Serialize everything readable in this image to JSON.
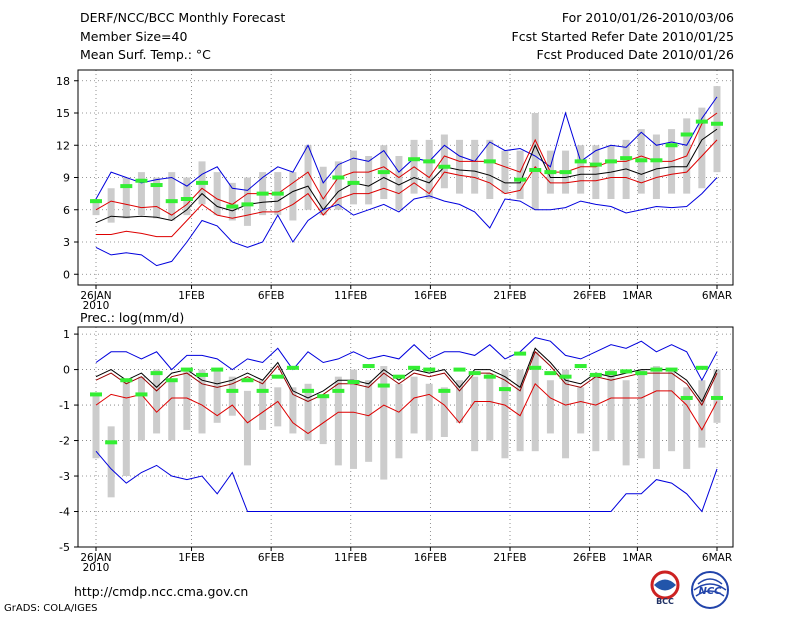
{
  "header": {
    "title": "DERF/NCC/BCC Monthly Forecast",
    "member_size": "Member Size=40",
    "variable": "Mean Surf. Temp.: °C",
    "period": "For 2010/01/26-2010/03/06",
    "started": "Fcst Started Refer Date 2010/01/25",
    "produced": "Fcst Produced Date 2010/01/26"
  },
  "footer": {
    "url": "http://cmdp.ncc.cma.gov.cn",
    "credit": "GrADS: COLA/IGES",
    "logo_bcc": "BCC",
    "logo_ncc": "NCC"
  },
  "chart_data": [
    {
      "type": "line",
      "title": "Mean Surf. Temp.: °C",
      "xlabel": "",
      "ylabel": "",
      "ylim": [
        -1,
        19
      ],
      "yticks": [
        0,
        3,
        6,
        9,
        12,
        15,
        18
      ],
      "xticks": [
        {
          "day": 0,
          "label": "26JAN",
          "sub": "2010"
        },
        {
          "day": 6,
          "label": "1FEB"
        },
        {
          "day": 11,
          "label": "6FEB"
        },
        {
          "day": 16,
          "label": "11FEB"
        },
        {
          "day": 21,
          "label": "16FEB"
        },
        {
          "day": 26,
          "label": "21FEB"
        },
        {
          "day": 31,
          "label": "26FEB"
        },
        {
          "day": 34,
          "label": "1MAR"
        },
        {
          "day": 39,
          "label": "6MAR"
        }
      ],
      "series": [
        {
          "name": "max",
          "color": "#0000dd",
          "values": [
            7.0,
            9.5,
            9.0,
            8.5,
            8.8,
            9.0,
            8.2,
            9.3,
            10.0,
            8.0,
            7.8,
            9.0,
            10.0,
            9.5,
            12.0,
            8.5,
            10.2,
            10.8,
            10.5,
            11.5,
            9.5,
            10.8,
            10.5,
            12.0,
            11.0,
            10.5,
            12.3,
            11.5,
            11.7,
            11.0,
            10.0,
            15.0,
            10.5,
            11.5,
            12.0,
            11.8,
            13.2,
            12.0,
            12.3,
            12.0,
            14.5,
            16.5
          ]
        },
        {
          "name": "upper",
          "color": "#dd0000",
          "values": [
            6.0,
            6.8,
            6.5,
            6.2,
            6.3,
            5.5,
            6.5,
            8.0,
            7.0,
            6.5,
            7.5,
            7.5,
            7.5,
            8.5,
            9.5,
            7.0,
            9.0,
            9.5,
            9.5,
            10.0,
            9.0,
            10.0,
            9.0,
            11.0,
            10.5,
            10.5,
            10.5,
            10.0,
            9.5,
            12.5,
            9.5,
            9.5,
            10.0,
            10.0,
            10.5,
            10.5,
            11.0,
            10.5,
            10.5,
            11.0,
            14.0,
            15.0
          ]
        },
        {
          "name": "mean",
          "color": "#000000",
          "values": [
            4.8,
            5.4,
            5.3,
            5.4,
            5.3,
            5.0,
            6.0,
            7.5,
            6.3,
            5.9,
            6.5,
            6.7,
            6.8,
            7.7,
            8.2,
            6.0,
            7.7,
            8.5,
            8.2,
            9.0,
            8.3,
            9.0,
            8.5,
            10.0,
            9.7,
            9.6,
            9.2,
            8.5,
            8.5,
            12.0,
            9.0,
            9.0,
            9.3,
            9.3,
            9.5,
            9.8,
            9.3,
            9.8,
            10.0,
            10.0,
            12.5,
            13.5
          ]
        },
        {
          "name": "lower",
          "color": "#dd0000",
          "values": [
            3.7,
            3.7,
            4.0,
            3.8,
            3.5,
            3.5,
            5.0,
            6.5,
            5.5,
            5.2,
            5.5,
            5.8,
            5.8,
            6.5,
            7.5,
            5.5,
            7.0,
            7.5,
            7.5,
            8.0,
            7.5,
            8.5,
            7.5,
            9.5,
            9.2,
            9.0,
            8.5,
            7.5,
            7.8,
            10.0,
            8.5,
            8.5,
            8.7,
            8.7,
            9.0,
            9.0,
            8.5,
            9.0,
            9.3,
            9.5,
            11.0,
            12.5
          ]
        },
        {
          "name": "min",
          "color": "#0000dd",
          "values": [
            2.5,
            1.8,
            2.0,
            1.8,
            0.8,
            1.2,
            3.0,
            5.0,
            4.5,
            3.0,
            2.5,
            3.0,
            5.5,
            3.0,
            5.0,
            6.0,
            6.5,
            5.5,
            6.0,
            6.5,
            5.8,
            7.0,
            7.3,
            6.8,
            6.5,
            5.8,
            4.3,
            7.0,
            6.8,
            6.0,
            6.0,
            6.2,
            6.8,
            6.5,
            6.3,
            5.7,
            6.0,
            6.3,
            6.2,
            6.3,
            7.5,
            9.0
          ]
        }
      ],
      "box_series": {
        "name": "ensemble range",
        "color": "#cccccc",
        "low": [
          5.5,
          4.8,
          5.2,
          5.5,
          5.2,
          5.0,
          5.5,
          6.5,
          5.5,
          5.0,
          4.5,
          5.5,
          5.5,
          5.0,
          6.0,
          5.5,
          6.0,
          6.5,
          6.5,
          7.0,
          6.0,
          7.5,
          7.0,
          8.0,
          7.5,
          7.5,
          7.0,
          7.5,
          7.0,
          6.0,
          7.5,
          7.5,
          7.5,
          7.0,
          7.0,
          7.0,
          7.5,
          7.0,
          7.5,
          7.5,
          8.0,
          9.5
        ],
        "high": [
          7.0,
          8.0,
          9.0,
          9.5,
          9.0,
          9.5,
          9.0,
          10.5,
          9.5,
          8.5,
          9.0,
          9.5,
          9.5,
          9.5,
          12.0,
          10.0,
          10.5,
          11.5,
          11.0,
          12.0,
          11.0,
          12.5,
          12.5,
          13.0,
          12.5,
          12.5,
          12.5,
          11.5,
          11.5,
          15.0,
          11.5,
          11.5,
          12.0,
          12.0,
          12.0,
          12.5,
          13.5,
          13.0,
          13.5,
          14.5,
          15.5,
          17.5
        ]
      },
      "markers": {
        "name": "observed",
        "color": "#33ee33",
        "values": [
          6.8,
          null,
          8.2,
          8.7,
          8.3,
          6.8,
          7.0,
          8.5,
          null,
          6.3,
          6.5,
          7.5,
          7.5,
          null,
          null,
          null,
          9.0,
          8.5,
          null,
          9.5,
          null,
          10.7,
          10.5,
          10.0,
          null,
          null,
          10.5,
          null,
          8.8,
          9.7,
          9.5,
          9.5,
          10.5,
          10.2,
          10.5,
          10.8,
          10.6,
          10.6,
          12.0,
          13.0,
          14.2,
          14.0
        ]
      }
    },
    {
      "type": "line",
      "title": "Prec.: log(mm/d)",
      "xlabel": "",
      "ylabel": "",
      "ylim": [
        -5,
        1.2
      ],
      "yticks": [
        -5,
        -4,
        -3,
        -2,
        -1,
        0,
        1
      ],
      "xticks": [
        {
          "day": 0,
          "label": "26JAN",
          "sub": "2010"
        },
        {
          "day": 6,
          "label": "1FEB"
        },
        {
          "day": 11,
          "label": "6FEB"
        },
        {
          "day": 16,
          "label": "11FEB"
        },
        {
          "day": 21,
          "label": "16FEB"
        },
        {
          "day": 26,
          "label": "21FEB"
        },
        {
          "day": 31,
          "label": "26FEB"
        },
        {
          "day": 34,
          "label": "1MAR"
        },
        {
          "day": 39,
          "label": "6MAR"
        }
      ],
      "series": [
        {
          "name": "max",
          "color": "#0000dd",
          "values": [
            0.2,
            0.5,
            0.5,
            0.3,
            0.5,
            0.0,
            0.4,
            0.4,
            0.3,
            0.0,
            0.3,
            0.2,
            0.6,
            0.0,
            0.5,
            0.2,
            0.3,
            0.5,
            0.3,
            0.4,
            0.3,
            0.7,
            0.3,
            0.5,
            0.5,
            0.4,
            0.7,
            0.3,
            0.5,
            0.9,
            0.8,
            0.4,
            0.3,
            0.5,
            0.7,
            0.6,
            0.8,
            0.5,
            0.7,
            0.5,
            -0.3,
            0.5
          ]
        },
        {
          "name": "upper",
          "color": "#000000",
          "values": [
            -0.2,
            0.0,
            -0.3,
            -0.1,
            -0.5,
            -0.1,
            0.0,
            -0.3,
            -0.4,
            -0.3,
            -0.1,
            -0.3,
            0.2,
            -0.6,
            -0.8,
            -0.6,
            -0.3,
            -0.3,
            -0.4,
            0.0,
            -0.3,
            0.0,
            -0.1,
            0.0,
            -0.5,
            0.0,
            0.0,
            -0.2,
            -0.5,
            0.6,
            0.2,
            -0.3,
            -0.4,
            -0.1,
            -0.2,
            -0.1,
            0.0,
            0.0,
            0.0,
            -0.3,
            -0.9,
            0.0
          ]
        },
        {
          "name": "mean",
          "color": "#990000",
          "values": [
            -0.3,
            -0.1,
            -0.4,
            -0.2,
            -0.6,
            -0.2,
            -0.1,
            -0.4,
            -0.5,
            -0.4,
            -0.2,
            -0.4,
            0.1,
            -0.7,
            -0.9,
            -0.7,
            -0.4,
            -0.4,
            -0.5,
            -0.1,
            -0.4,
            -0.1,
            -0.2,
            -0.1,
            -0.6,
            -0.1,
            -0.1,
            -0.3,
            -0.6,
            0.5,
            0.1,
            -0.4,
            -0.5,
            -0.2,
            -0.3,
            -0.2,
            -0.1,
            -0.1,
            -0.1,
            -0.4,
            -1.0,
            -0.1
          ]
        },
        {
          "name": "lower",
          "color": "#dd0000",
          "values": [
            -1.0,
            -0.7,
            -0.8,
            -0.7,
            -1.2,
            -0.8,
            -0.8,
            -1.0,
            -1.3,
            -1.0,
            -1.5,
            -1.2,
            -0.9,
            -1.5,
            -1.8,
            -1.5,
            -1.2,
            -1.2,
            -1.3,
            -1.0,
            -1.2,
            -0.8,
            -0.7,
            -1.0,
            -1.5,
            -0.9,
            -0.9,
            -1.0,
            -1.3,
            -0.4,
            -0.8,
            -1.0,
            -0.9,
            -1.0,
            -0.8,
            -0.8,
            -0.8,
            -0.6,
            -0.6,
            -1.0,
            -1.7,
            -0.9
          ]
        },
        {
          "name": "min",
          "color": "#0000dd",
          "values": [
            -2.3,
            -2.8,
            -3.2,
            -2.9,
            -2.7,
            -3.0,
            -3.1,
            -3.0,
            -3.5,
            -2.9,
            -4.0,
            -4.0,
            -4.0,
            -4.0,
            -4.0,
            -4.0,
            -4.0,
            -4.0,
            -4.0,
            -4.0,
            -4.0,
            -4.0,
            -4.0,
            -4.0,
            -4.0,
            -4.0,
            -4.0,
            -4.0,
            -4.0,
            -4.0,
            -4.0,
            -4.0,
            -4.0,
            -4.0,
            -4.0,
            -3.5,
            -3.5,
            -3.1,
            -3.2,
            -3.5,
            -4.0,
            -2.8
          ]
        }
      ],
      "box_series": {
        "name": "ensemble range",
        "color": "#cccccc",
        "low": [
          -2.5,
          -3.6,
          -3.0,
          -2.0,
          -1.8,
          -2.0,
          -1.7,
          -1.8,
          -1.5,
          -1.3,
          -2.7,
          -1.7,
          -1.6,
          -1.8,
          -2.0,
          -2.1,
          -2.7,
          -2.8,
          -2.6,
          -3.1,
          -2.5,
          -1.8,
          -2.0,
          -1.9,
          -1.5,
          -2.3,
          -2.0,
          -2.5,
          -2.3,
          -2.3,
          -1.8,
          -2.5,
          -1.8,
          -2.3,
          -2.0,
          -2.7,
          -2.5,
          -2.8,
          -2.3,
          -2.8,
          -2.2,
          -1.5
        ],
        "high": [
          -0.7,
          -1.6,
          -0.3,
          -0.2,
          0.0,
          -0.3,
          0.0,
          0.0,
          0.0,
          -0.2,
          -0.6,
          -0.3,
          -0.5,
          -0.5,
          -0.4,
          -0.7,
          -0.2,
          0.0,
          -0.3,
          0.1,
          -0.4,
          -0.2,
          -0.4,
          -0.5,
          -0.3,
          -0.2,
          -0.1,
          0.0,
          0.0,
          0.5,
          -0.3,
          0.0,
          -0.5,
          -0.2,
          0.0,
          -0.3,
          0.0,
          0.1,
          0.0,
          -0.5,
          -0.3,
          0.0
        ]
      },
      "markers": {
        "name": "observed",
        "color": "#33ee33",
        "values": [
          -0.7,
          -2.05,
          -0.3,
          -0.7,
          -0.1,
          -0.3,
          0.0,
          -0.15,
          0.0,
          -0.6,
          -0.3,
          -0.6,
          -0.2,
          0.05,
          -0.6,
          -0.75,
          -0.6,
          -0.35,
          0.1,
          -0.45,
          -0.2,
          0.05,
          0.0,
          -0.6,
          0.0,
          -0.1,
          -0.2,
          -0.55,
          0.45,
          0.05,
          -0.1,
          -0.2,
          0.1,
          -0.15,
          -0.1,
          -0.05,
          -0.1,
          0.0,
          0.0,
          -0.8,
          0.05,
          -0.8
        ]
      }
    }
  ]
}
